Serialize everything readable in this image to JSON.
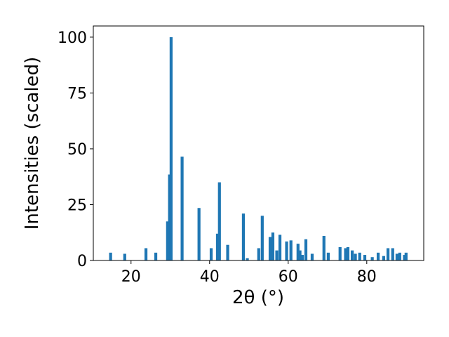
{
  "chart_data": {
    "type": "bar",
    "xlabel": "2θ (°)",
    "ylabel": "Intensities (scaled)",
    "color": "#1f77b4",
    "x": [
      14.8,
      18.4,
      23.8,
      26.3,
      29.3,
      29.8,
      30.2,
      33.0,
      37.3,
      40.4,
      42.0,
      42.5,
      44.6,
      48.6,
      49.6,
      52.5,
      53.4,
      55.4,
      56.1,
      57.1,
      57.9,
      59.6,
      60.7,
      62.5,
      63.0,
      63.6,
      64.5,
      66.1,
      69.1,
      70.2,
      73.2,
      74.6,
      75.2,
      76.3,
      77.1,
      78.2,
      79.5,
      81.4,
      82.9,
      84.3,
      85.4,
      86.6,
      87.7,
      88.4,
      89.6,
      90.0
    ],
    "values": [
      3.5,
      3,
      5.5,
      3.5,
      17.5,
      38.5,
      100,
      46.5,
      23.5,
      5.5,
      12,
      35,
      7,
      21,
      1,
      5.5,
      20,
      10.5,
      12.5,
      4.5,
      11.5,
      8.5,
      9,
      7.5,
      4.5,
      2.5,
      9.5,
      3,
      11,
      3.5,
      6,
      5.5,
      6,
      4.5,
      3,
      3.5,
      2.5,
      1.5,
      3.5,
      2,
      5.5,
      5.5,
      3,
      3.5,
      2.5,
      3.5
    ],
    "xlim": [
      10.4,
      94.5
    ],
    "ylim": [
      0,
      105
    ],
    "xticks": [
      20,
      40,
      60,
      80
    ],
    "yticks": [
      0,
      25,
      50,
      75,
      100
    ]
  }
}
